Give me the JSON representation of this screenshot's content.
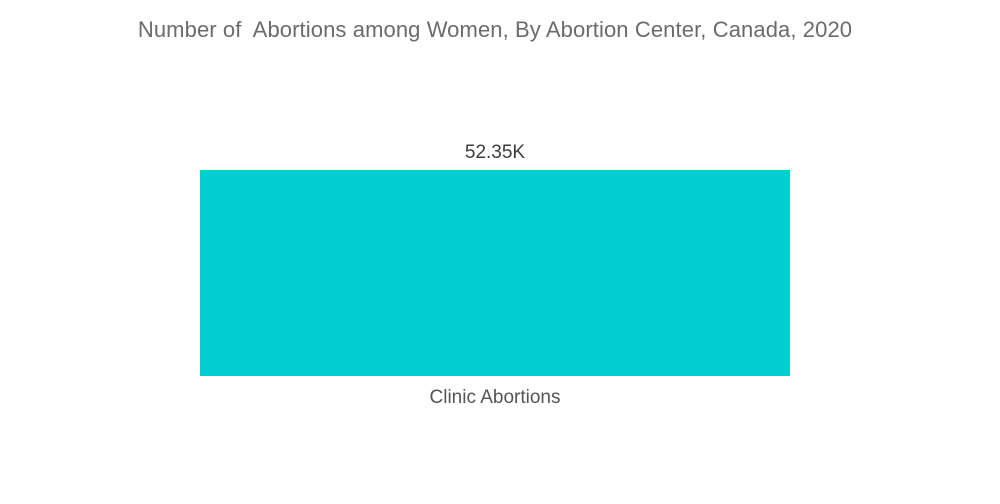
{
  "chart_data": {
    "type": "bar",
    "title": "Number of  Abortions among Women, By Abortion Center, Canada, 2020",
    "categories": [
      "Clinic Abortions"
    ],
    "values": [
      52.35
    ],
    "value_labels": [
      "52.35K"
    ],
    "xlabel": "",
    "ylabel": "",
    "ylim": [
      0,
      52.35
    ],
    "grid": false,
    "legend": "none",
    "colors": {
      "bar": "#00ced1"
    }
  }
}
